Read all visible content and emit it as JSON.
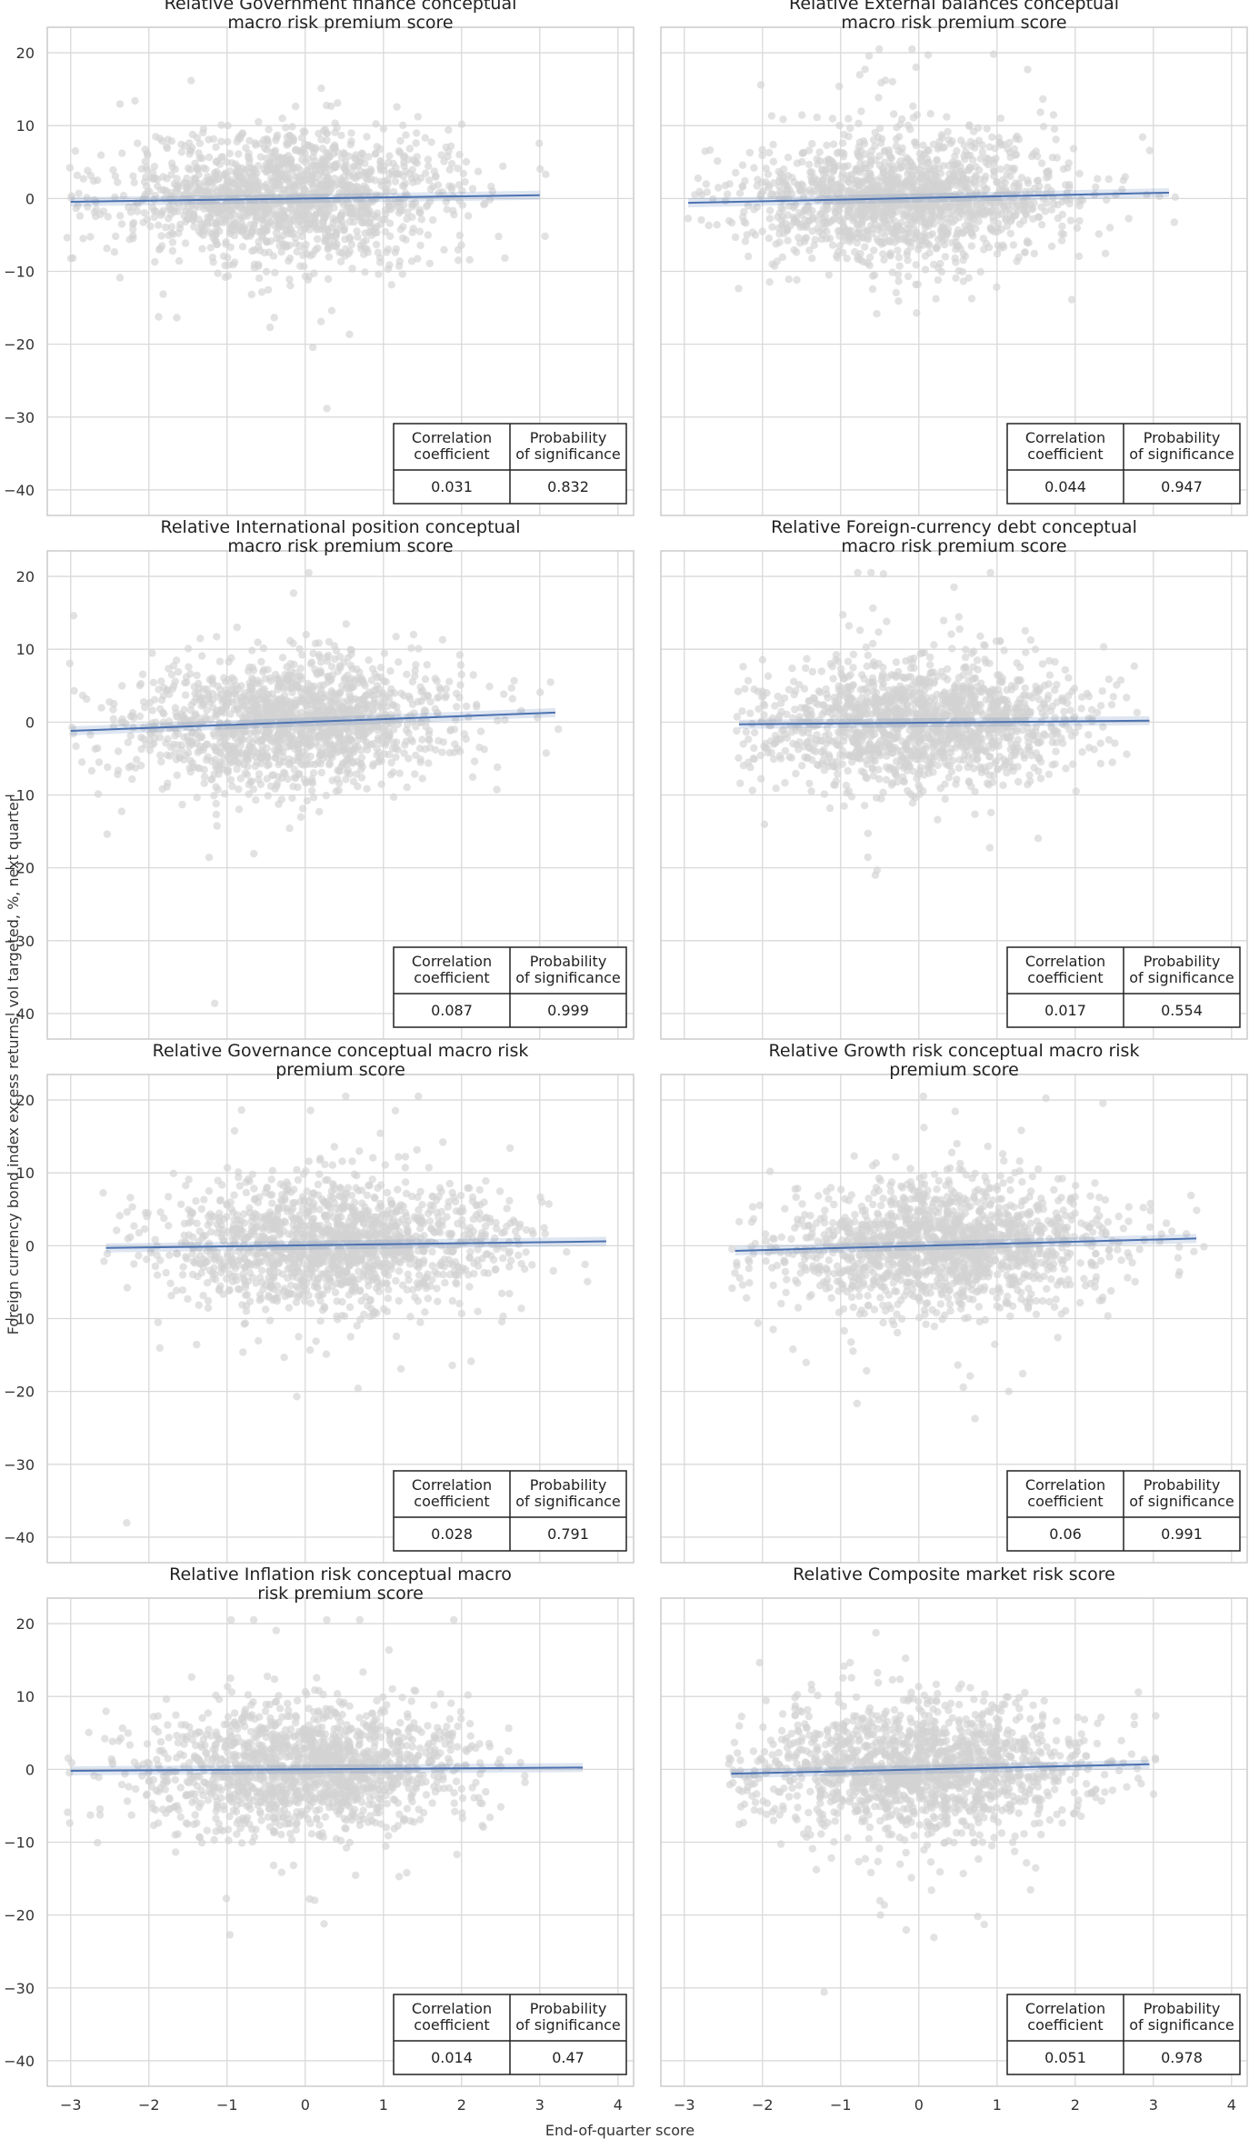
{
  "figure": {
    "ylabel": "Foreign currency bond index excess returns, vol targeted, %, next quarter",
    "xlabel": "End-of-quarter score",
    "x_ticks": [
      -3,
      -2,
      -1,
      0,
      1,
      2,
      3,
      4
    ],
    "y_ticks": [
      20,
      10,
      0,
      -10,
      -20,
      -30,
      -40
    ],
    "table_headers": [
      "Correlation\ncoefficient",
      "Probability\nof significance"
    ]
  },
  "colors": {
    "points": "#d3d3d3",
    "line": "#4c72b0",
    "grid": "#d9d9d9",
    "frame": "#cccccc"
  },
  "chart_data": [
    {
      "type": "scatter",
      "title": "Relative Government finance conceptual\nmacro risk premium score",
      "xlim": [
        -3.3,
        4.2
      ],
      "ylim": [
        -43.5,
        23.5
      ],
      "fit": {
        "x": [
          -3,
          3
        ],
        "y": [
          -0.45,
          0.45
        ]
      },
      "corr": "0.031",
      "prob": "0.832"
    },
    {
      "type": "scatter",
      "title": "Relative External balances conceptual\nmacro risk premium score",
      "xlim": [
        -3.3,
        4.2
      ],
      "ylim": [
        -43.5,
        23.5
      ],
      "fit": {
        "x": [
          -2.95,
          3.2
        ],
        "y": [
          -0.6,
          0.8
        ]
      },
      "corr": "0.044",
      "prob": "0.947"
    },
    {
      "type": "scatter",
      "title": "Relative International position conceptual\nmacro risk premium score",
      "xlim": [
        -3.3,
        4.2
      ],
      "ylim": [
        -43.5,
        23.5
      ],
      "fit": {
        "x": [
          -3,
          3.2
        ],
        "y": [
          -1.2,
          1.3
        ]
      },
      "corr": "0.087",
      "prob": "0.999"
    },
    {
      "type": "scatter",
      "title": "Relative Foreign-currency debt conceptual\nmacro risk premium score",
      "xlim": [
        -3.3,
        4.2
      ],
      "ylim": [
        -43.5,
        23.5
      ],
      "fit": {
        "x": [
          -2.3,
          2.95
        ],
        "y": [
          -0.3,
          0.2
        ]
      },
      "corr": "0.017",
      "prob": "0.554"
    },
    {
      "type": "scatter",
      "title": "Relative Governance conceptual macro risk\npremium score",
      "xlim": [
        -3.3,
        4.2
      ],
      "ylim": [
        -43.5,
        23.5
      ],
      "fit": {
        "x": [
          -2.55,
          3.85
        ],
        "y": [
          -0.3,
          0.6
        ]
      },
      "corr": "0.028",
      "prob": "0.791"
    },
    {
      "type": "scatter",
      "title": "Relative Growth risk conceptual macro risk\npremium score",
      "xlim": [
        -3.3,
        4.2
      ],
      "ylim": [
        -43.5,
        23.5
      ],
      "fit": {
        "x": [
          -2.35,
          3.55
        ],
        "y": [
          -0.7,
          1.0
        ]
      },
      "corr": "0.06",
      "prob": "0.991"
    },
    {
      "type": "scatter",
      "title": "Relative Inflation risk conceptual macro\nrisk premium score",
      "xlim": [
        -3.3,
        4.2
      ],
      "ylim": [
        -43.5,
        23.5
      ],
      "fit": {
        "x": [
          -3,
          3.55
        ],
        "y": [
          -0.2,
          0.25
        ]
      },
      "corr": "0.014",
      "prob": "0.47"
    },
    {
      "type": "scatter",
      "title": "Relative Composite market risk score",
      "xlim": [
        -3.3,
        4.2
      ],
      "ylim": [
        -43.5,
        23.5
      ],
      "fit": {
        "x": [
          -2.4,
          2.95
        ],
        "y": [
          -0.6,
          0.7
        ]
      },
      "corr": "0.051",
      "prob": "0.978"
    }
  ]
}
